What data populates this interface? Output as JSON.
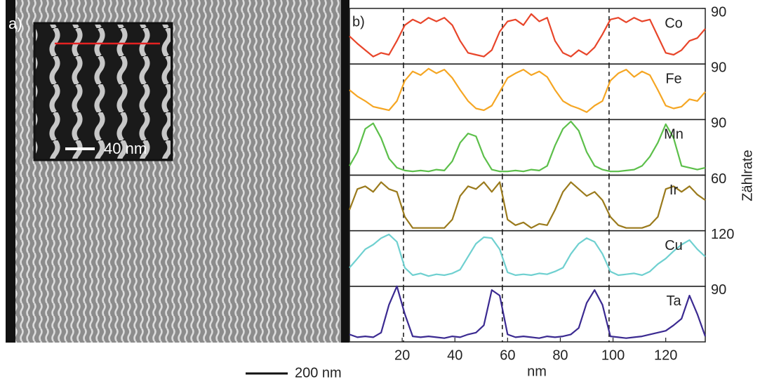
{
  "image": {
    "label": "a)",
    "inset_scale": "40 nm",
    "scale_bar": "200 nm"
  },
  "chart_data": {
    "type": "line",
    "label": "b)",
    "xlabel": "nm",
    "ylabel": "Zählrate",
    "xlim": [
      0,
      135
    ],
    "xticks": [
      20,
      40,
      60,
      80,
      100,
      120
    ],
    "vlines": [
      20.5,
      58,
      98.5
    ],
    "x": [
      0,
      3,
      6,
      9,
      12,
      15,
      18,
      21,
      24,
      27,
      30,
      33,
      36,
      39,
      42,
      45,
      48,
      51,
      54,
      57,
      60,
      63,
      66,
      69,
      72,
      75,
      78,
      81,
      84,
      87,
      90,
      93,
      96,
      99,
      102,
      105,
      108,
      111,
      114,
      117,
      120,
      123,
      126,
      129,
      132,
      135
    ],
    "series": [
      {
        "name": "Co",
        "color": "#e8452a",
        "ylim": [
          30,
          90
        ],
        "yticks": [
          90
        ],
        "values": [
          60,
          52,
          45,
          38,
          42,
          40,
          55,
          72,
          78,
          74,
          80,
          76,
          80,
          72,
          55,
          42,
          40,
          38,
          45,
          65,
          76,
          78,
          72,
          84,
          76,
          80,
          55,
          42,
          38,
          45,
          40,
          48,
          62,
          78,
          80,
          75,
          80,
          76,
          78,
          60,
          42,
          40,
          45,
          55,
          58,
          68
        ]
      },
      {
        "name": "Fe",
        "color": "#f5a623",
        "ylim": [
          30,
          90
        ],
        "yticks": [
          90
        ],
        "values": [
          62,
          55,
          50,
          44,
          42,
          40,
          50,
          72,
          82,
          78,
          85,
          80,
          84,
          75,
          62,
          50,
          42,
          40,
          45,
          60,
          75,
          80,
          84,
          78,
          82,
          76,
          62,
          50,
          45,
          42,
          38,
          45,
          50,
          72,
          80,
          84,
          76,
          82,
          78,
          62,
          45,
          42,
          44,
          52,
          50,
          60
        ]
      },
      {
        "name": "Mn",
        "color": "#5cbf4a",
        "ylim": [
          30,
          90
        ],
        "yticks": [
          90
        ],
        "values": [
          40,
          55,
          80,
          86,
          70,
          48,
          38,
          35,
          34,
          35,
          34,
          36,
          35,
          45,
          65,
          75,
          72,
          50,
          36,
          34,
          34,
          35,
          34,
          36,
          35,
          40,
          62,
          80,
          88,
          78,
          55,
          40,
          36,
          34,
          34,
          35,
          36,
          40,
          50,
          65,
          85,
          70,
          40,
          38,
          36,
          38
        ]
      },
      {
        "name": "Ir",
        "color": "#9a7a1c",
        "ylim": [
          20,
          60
        ],
        "yticks": [
          60
        ],
        "values": [
          35,
          50,
          52,
          48,
          55,
          50,
          48,
          30,
          22,
          22,
          22,
          22,
          22,
          28,
          45,
          52,
          50,
          55,
          48,
          55,
          28,
          24,
          26,
          22,
          25,
          24,
          35,
          48,
          55,
          50,
          45,
          48,
          42,
          30,
          24,
          22,
          22,
          22,
          24,
          30,
          50,
          52,
          48,
          52,
          46,
          42
        ]
      },
      {
        "name": "Cu",
        "color": "#6fd0d0",
        "ylim": [
          60,
          120
        ],
        "yticks": [
          120
        ],
        "values": [
          80,
          90,
          100,
          105,
          112,
          116,
          108,
          80,
          72,
          74,
          71,
          73,
          72,
          74,
          78,
          92,
          106,
          113,
          112,
          100,
          75,
          72,
          73,
          72,
          74,
          73,
          76,
          80,
          95,
          106,
          112,
          108,
          95,
          76,
          72,
          73,
          74,
          72,
          76,
          84,
          90,
          98,
          105,
          110,
          100,
          92
        ]
      },
      {
        "name": "Ta",
        "color": "#3b2a91",
        "ylim": [
          30,
          90
        ],
        "yticks": [
          90
        ],
        "values": [
          38,
          35,
          36,
          35,
          40,
          70,
          90,
          60,
          36,
          35,
          36,
          35,
          34,
          36,
          35,
          38,
          40,
          48,
          86,
          80,
          38,
          35,
          36,
          35,
          34,
          36,
          35,
          36,
          38,
          45,
          72,
          86,
          70,
          36,
          35,
          34,
          35,
          36,
          38,
          40,
          42,
          48,
          55,
          80,
          60,
          36
        ]
      }
    ]
  }
}
